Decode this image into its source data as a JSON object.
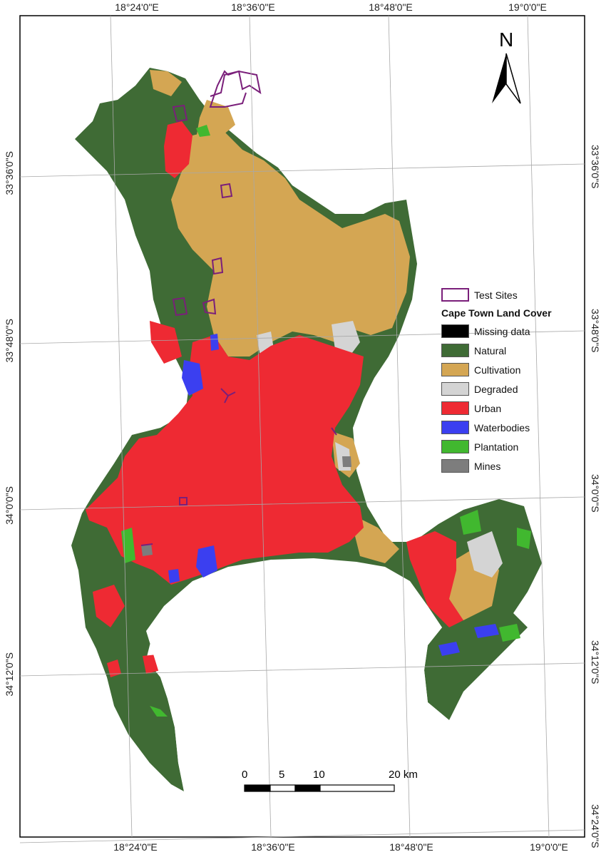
{
  "north_label": "N",
  "graticule": {
    "top": [
      "18°24'0\"E",
      "18°36'0\"E",
      "18°48'0\"E",
      "19°0'0\"E"
    ],
    "bottom": [
      "18°24'0\"E",
      "18°36'0\"E",
      "18°48'0\"E",
      "19°0'0\"E"
    ],
    "left": [
      "33°36'0\"S",
      "33°48'0\"S",
      "34°0'0\"S",
      "34°12'0\"S"
    ],
    "right": [
      "33°36'0\"S",
      "33°48'0\"S",
      "34°0'0\"S",
      "34°12'0\"S",
      "34°24'0\"S"
    ]
  },
  "legend": {
    "test_sites": "Test Sites",
    "title": "Cape Town Land Cover",
    "items": [
      {
        "label": "Missing data",
        "color": "#000000"
      },
      {
        "label": "Natural",
        "color": "#3f6b35"
      },
      {
        "label": "Cultivation",
        "color": "#d4a653"
      },
      {
        "label": "Degraded",
        "color": "#d4d4d4"
      },
      {
        "label": "Urban",
        "color": "#ee2a33"
      },
      {
        "label": "Waterbodies",
        "color": "#3b3ff0"
      },
      {
        "label": "Plantation",
        "color": "#41b82f"
      },
      {
        "label": "Mines",
        "color": "#7d7d7d"
      }
    ],
    "test_site_color": "#7a1f7a"
  },
  "scale_bar": {
    "labels": [
      "0",
      "5",
      "10",
      "20 km"
    ]
  }
}
